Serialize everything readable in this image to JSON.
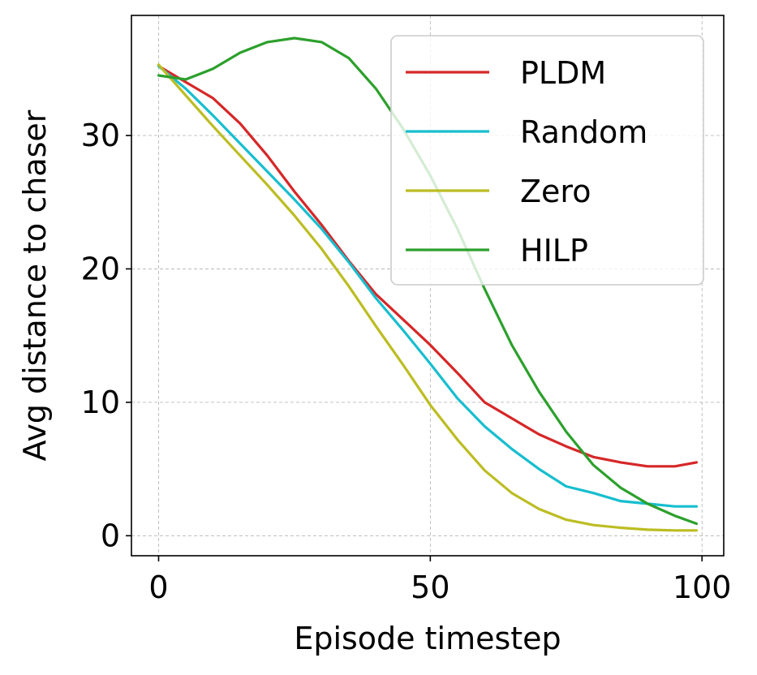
{
  "chart_data": {
    "type": "line",
    "title": "",
    "xlabel": "Episode timestep",
    "ylabel": "Avg distance to chaser",
    "xlim": [
      -5,
      104
    ],
    "ylim": [
      -1.5,
      39
    ],
    "xticks": [
      0,
      50,
      100
    ],
    "yticks": [
      0,
      10,
      20,
      30
    ],
    "xtick_labels": [
      "0",
      "50",
      "100"
    ],
    "ytick_labels": [
      "0",
      "10",
      "20",
      "30"
    ],
    "grid": true,
    "legend_position": "top-right",
    "x": [
      0,
      5,
      10,
      15,
      20,
      25,
      30,
      35,
      40,
      45,
      50,
      55,
      60,
      65,
      70,
      75,
      80,
      85,
      90,
      95,
      99
    ],
    "series": [
      {
        "name": "PLDM",
        "color": "#d62728",
        "values": [
          35.2,
          34.0,
          32.8,
          30.9,
          28.5,
          25.8,
          23.3,
          20.6,
          18.1,
          16.2,
          14.3,
          12.2,
          10.0,
          8.8,
          7.6,
          6.7,
          5.9,
          5.5,
          5.2,
          5.2,
          5.5
        ]
      },
      {
        "name": "Random",
        "color": "#17becf",
        "values": [
          35.2,
          33.5,
          31.5,
          29.4,
          27.3,
          25.2,
          23.0,
          20.5,
          17.8,
          15.4,
          12.9,
          10.3,
          8.2,
          6.5,
          5.0,
          3.7,
          3.2,
          2.6,
          2.4,
          2.2,
          2.2
        ]
      },
      {
        "name": "Zero",
        "color": "#bcbd22",
        "values": [
          35.3,
          33.0,
          30.7,
          28.5,
          26.3,
          24.0,
          21.5,
          18.7,
          15.7,
          12.8,
          9.8,
          7.2,
          4.9,
          3.2,
          2.0,
          1.2,
          0.8,
          0.6,
          0.45,
          0.4,
          0.4
        ]
      },
      {
        "name": "HILP",
        "color": "#2ca02c",
        "values": [
          34.5,
          34.2,
          35.0,
          36.2,
          37.0,
          37.3,
          37.0,
          35.8,
          33.5,
          30.5,
          27.0,
          23.0,
          18.5,
          14.3,
          10.8,
          7.8,
          5.3,
          3.6,
          2.4,
          1.5,
          0.9
        ]
      }
    ]
  }
}
